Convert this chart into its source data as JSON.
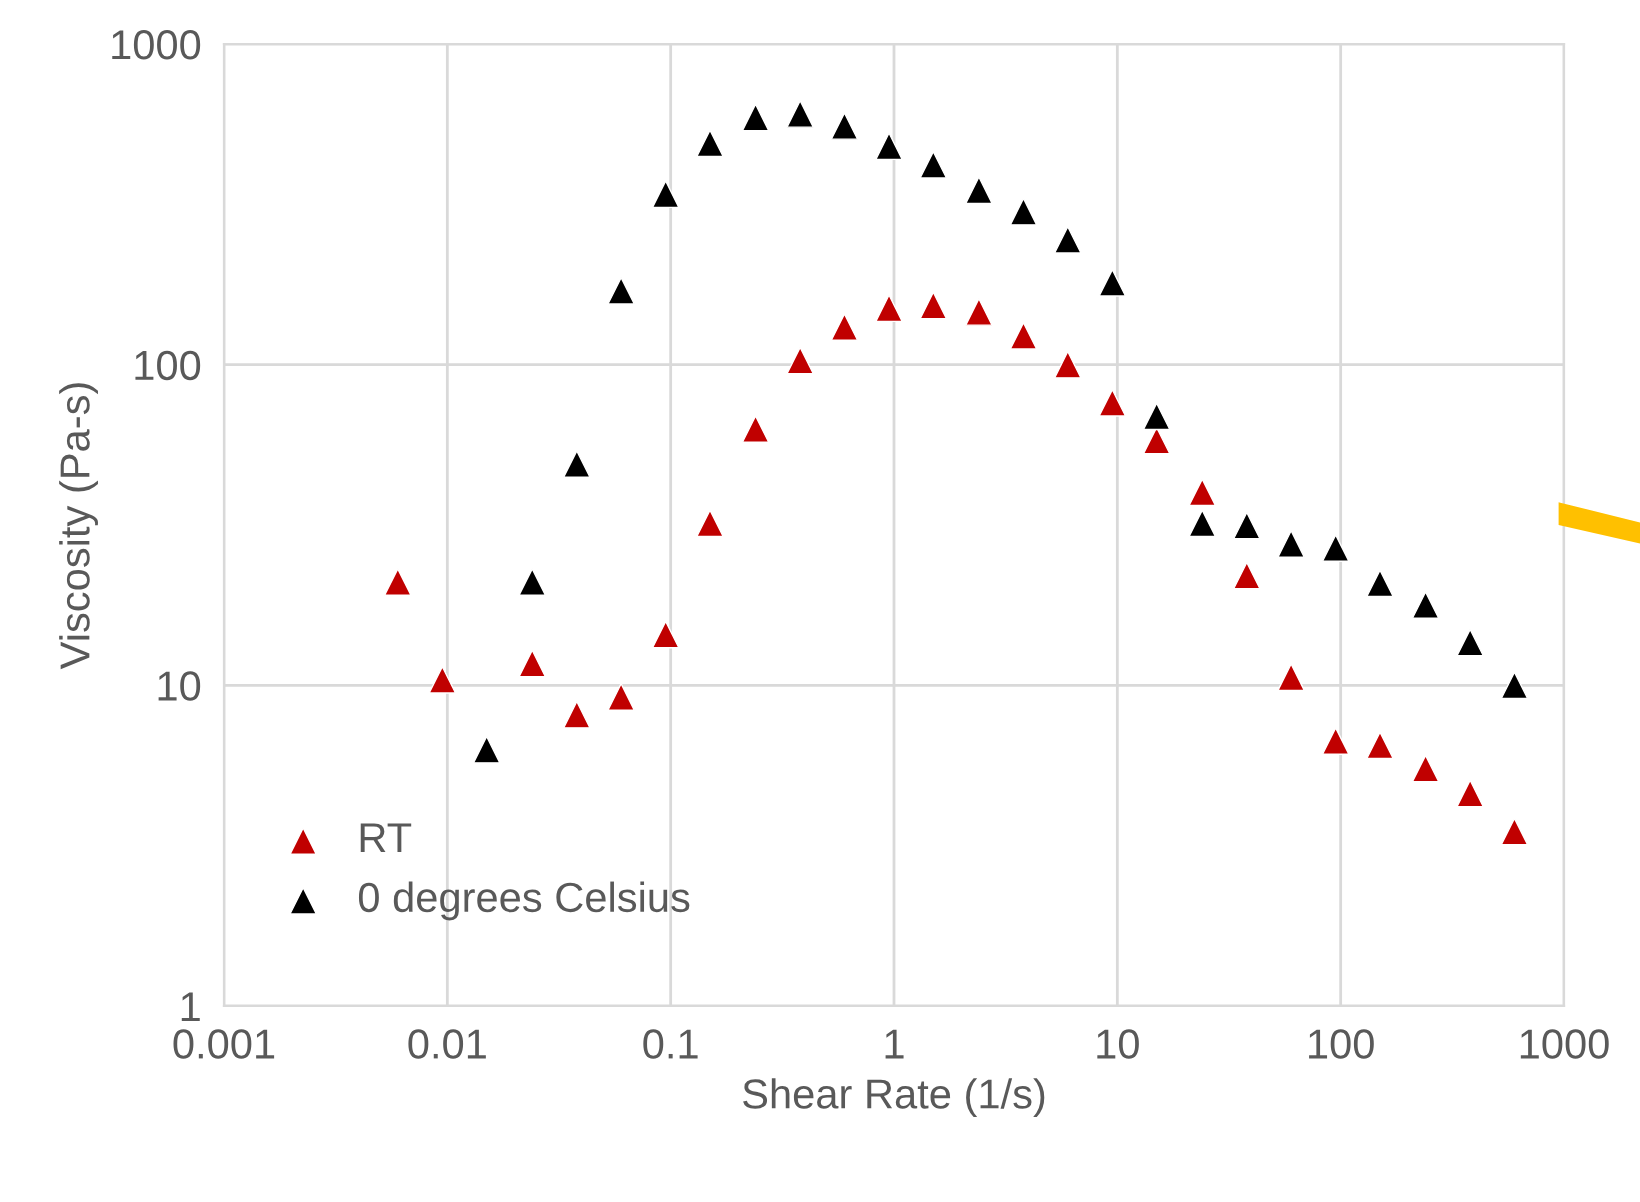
{
  "chart_data": {
    "type": "scatter",
    "xlabel": "Shear Rate (1/s)",
    "ylabel": "Viscosity (Pa-s)",
    "log": "xy",
    "xlim": [
      0.001,
      1000
    ],
    "ylim": [
      1,
      1000
    ],
    "xticks": [
      0.001,
      0.01,
      0.1,
      1,
      10,
      100,
      1000
    ],
    "yticks": [
      1,
      10,
      100,
      1000
    ],
    "grid": true,
    "legend": "bottom left",
    "marker": "triangle",
    "series": [
      {
        "name": "RT",
        "color": "#c00000",
        "x": [
          0.006,
          0.0095,
          0.024,
          0.038,
          0.06,
          0.095,
          0.15,
          0.24,
          0.38,
          0.6,
          0.95,
          1.5,
          2.4,
          3.8,
          6,
          9.5,
          15,
          24,
          38,
          60,
          95,
          150,
          240,
          380,
          600
        ],
        "values": [
          21,
          10.4,
          11.7,
          8.1,
          9.2,
          14.4,
          32,
          63,
          103,
          131,
          150,
          153,
          146,
          123,
          100,
          76,
          58,
          40,
          22,
          10.6,
          6.7,
          6.5,
          5.5,
          4.6,
          3.5
        ]
      },
      {
        "name": "0 degrees Celsius",
        "color": "#000000",
        "x": [
          0.015,
          0.024,
          0.038,
          0.06,
          0.095,
          0.15,
          0.24,
          0.38,
          0.6,
          0.95,
          1.5,
          2.4,
          3.8,
          6,
          9.5,
          15,
          24,
          38,
          60,
          95,
          150,
          240,
          380,
          600
        ],
        "values": [
          6.3,
          21,
          49,
          170,
          340,
          490,
          590,
          605,
          555,
          480,
          420,
          350,
          300,
          245,
          180,
          69,
          32,
          31.5,
          27.6,
          26.8,
          20.8,
          17.8,
          13.6,
          10
        ]
      }
    ]
  }
}
